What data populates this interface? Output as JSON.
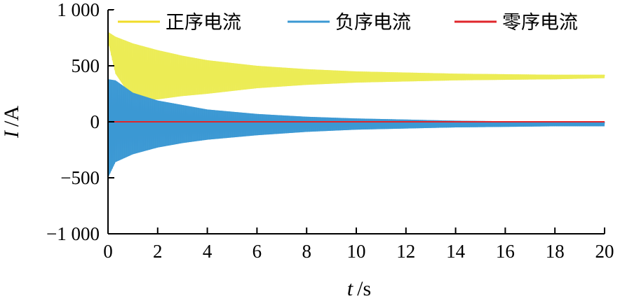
{
  "chart_data": {
    "type": "line",
    "title": "",
    "xlabel": {
      "symbol": "t",
      "unit": "/s"
    },
    "ylabel": {
      "symbol": "I",
      "unit": "/A"
    },
    "xlim": [
      0,
      20
    ],
    "ylim": [
      -1000,
      1000
    ],
    "x_ticks": [
      0,
      2,
      4,
      6,
      8,
      10,
      12,
      14,
      16,
      18,
      20
    ],
    "x_tick_labels": [
      "0",
      "2",
      "4",
      "6",
      "8",
      "10",
      "12",
      "14",
      "16",
      "18",
      "20"
    ],
    "y_ticks": [
      1000,
      500,
      0,
      -500,
      -1000
    ],
    "y_tick_labels": [
      "1 000",
      "500",
      "0",
      "−500",
      "−1 000"
    ],
    "grid": false,
    "legend": {
      "placement": "top",
      "entries": [
        {
          "name": "正序电流",
          "color": "#f0dc28"
        },
        {
          "name": "负序电流",
          "color": "#3b98d3"
        },
        {
          "name": "零序电流",
          "color": "#e0262b"
        }
      ]
    },
    "series": [
      {
        "name": "正序电流",
        "color": "#ecec55",
        "kind": "oscillating_band",
        "t": [
          0.02,
          0.3,
          1,
          2,
          3,
          4,
          6,
          8,
          10,
          12,
          14,
          16,
          18,
          20
        ],
        "upper": [
          800,
          760,
          700,
          640,
          590,
          550,
          500,
          470,
          450,
          440,
          430,
          425,
          420,
          420
        ],
        "lower": [
          700,
          430,
          200,
          200,
          230,
          250,
          300,
          330,
          350,
          360,
          370,
          375,
          380,
          390
        ]
      },
      {
        "name": "负序电流",
        "color": "#3b98d3",
        "kind": "oscillating_band",
        "t": [
          0.02,
          0.3,
          1,
          2,
          3,
          4,
          6,
          8,
          10,
          12,
          14,
          16,
          18,
          20
        ],
        "upper": [
          380,
          370,
          260,
          190,
          150,
          110,
          70,
          45,
          30,
          20,
          10,
          5,
          0,
          0
        ],
        "lower": [
          -490,
          -360,
          -290,
          -230,
          -190,
          -160,
          -120,
          -90,
          -70,
          -60,
          -50,
          -45,
          -40,
          -40
        ]
      },
      {
        "name": "零序电流",
        "color": "#e0262b",
        "kind": "line",
        "x": [
          0,
          20
        ],
        "y": [
          0,
          0
        ]
      }
    ]
  }
}
